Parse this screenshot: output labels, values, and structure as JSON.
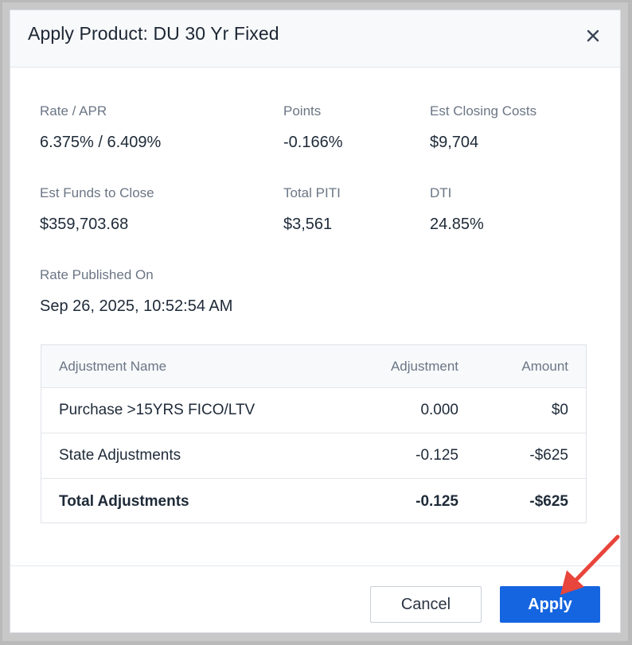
{
  "modal": {
    "title": "Apply Product: DU 30 Yr Fixed"
  },
  "summary": {
    "rate_apr": {
      "label": "Rate / APR",
      "value": "6.375% / 6.409%"
    },
    "points": {
      "label": "Points",
      "value": "-0.166%"
    },
    "closing_costs": {
      "label": "Est Closing Costs",
      "value": "$9,704"
    },
    "funds_to_close": {
      "label": "Est Funds to Close",
      "value": "$359,703.68"
    },
    "total_piti": {
      "label": "Total PITI",
      "value": "$3,561"
    },
    "dti": {
      "label": "DTI",
      "value": "24.85%"
    },
    "published": {
      "label": "Rate Published On",
      "value": "Sep 26, 2025, 10:52:54 AM"
    }
  },
  "table": {
    "headers": [
      "Adjustment Name",
      "Adjustment",
      "Amount"
    ],
    "rows": [
      {
        "name": "Purchase >15YRS FICO/LTV",
        "adjustment": "0.000",
        "amount": "$0"
      },
      {
        "name": "State Adjustments",
        "adjustment": "-0.125",
        "amount": "-$625"
      }
    ],
    "total": {
      "name": "Total Adjustments",
      "adjustment": "-0.125",
      "amount": "-$625"
    }
  },
  "footer": {
    "cancel_label": "Cancel",
    "apply_label": "Apply"
  },
  "colors": {
    "accent": "#1565e0",
    "annotation_arrow": "#e8453c"
  }
}
